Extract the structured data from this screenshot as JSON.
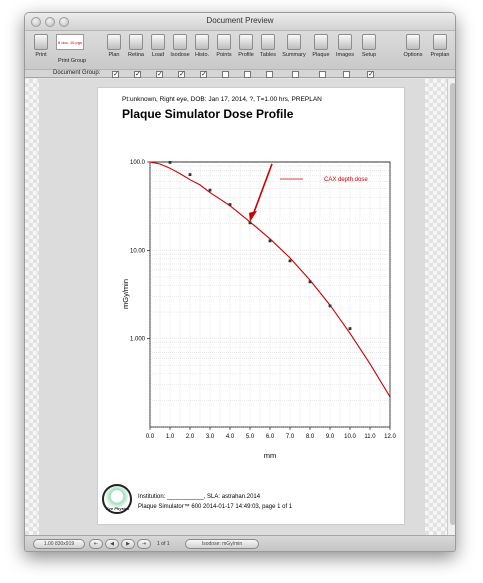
{
  "window": {
    "title": "Document Preview"
  },
  "toolbar": {
    "buttons": [
      "Print",
      "Print Group",
      "Plan",
      "Retina",
      "Load",
      "Isodose",
      "Histo.",
      "Points",
      "Profile",
      "Tables",
      "Summary",
      "Plaque",
      "Images",
      "Setup",
      "Options",
      "Preplan"
    ],
    "print_group_preview": "6 doc, 16 pgs"
  },
  "document_group": {
    "label": "Document Group:",
    "checks": [
      true,
      true,
      true,
      true,
      true,
      false,
      false,
      false,
      false,
      false,
      false,
      true
    ]
  },
  "page": {
    "patient_line": "Pt:unknown, Right eye, DOB: Jan 17, 2014, ?, T=1.00 hrs, PREPLAN",
    "title": "Plaque Simulator Dose Profile",
    "footer_institution": "Institution: ___________, SLA: astrahan.2014",
    "footer_product": "Plaque Simulator™ 600 2014-01-17 14:49:03, page 1 of 1",
    "logo_text": "Eye Physics"
  },
  "statusbar": {
    "coords": "1.00 830x919",
    "page_count": "1 of 1",
    "mode": "Isodose: mGy/min"
  },
  "chart_data": {
    "type": "line",
    "xlabel": "mm",
    "ylabel": "mGy/min",
    "y_scale": "log",
    "xlim": [
      0,
      12
    ],
    "ylim": [
      0.1,
      100
    ],
    "x_ticks": [
      "0.0",
      "1.0",
      "2.0",
      "3.0",
      "4.0",
      "5.0",
      "6.0",
      "7.0",
      "8.0",
      "9.0",
      "10.0",
      "11.0",
      "12.0"
    ],
    "y_ticks": [
      {
        "value": 100,
        "label": "100.0"
      },
      {
        "value": 10,
        "label": "10.00"
      },
      {
        "value": 1,
        "label": "1.000"
      }
    ],
    "legend_position": "top-right",
    "grid": true,
    "line_series": {
      "name": "CAX depth dose",
      "color": "#cc0000",
      "x": [
        0,
        0.5,
        1,
        1.5,
        2,
        2.5,
        3,
        4,
        5,
        6,
        7,
        8,
        9,
        10,
        11,
        12
      ],
      "y": [
        100,
        95,
        85,
        74,
        63,
        55,
        45,
        32,
        21,
        13.5,
        8.2,
        4.6,
        2.4,
        1.15,
        0.52,
        0.22
      ]
    },
    "points": {
      "color": "#333333",
      "x": [
        1,
        2,
        3,
        4,
        5,
        6,
        7,
        8,
        9,
        10
      ],
      "y": [
        99,
        72,
        48,
        33,
        20.5,
        12.8,
        7.6,
        4.4,
        2.35,
        1.3
      ]
    },
    "annotation": {
      "type": "arrow",
      "color": "#cc0000",
      "target_x": 5,
      "target_y": 21
    }
  }
}
